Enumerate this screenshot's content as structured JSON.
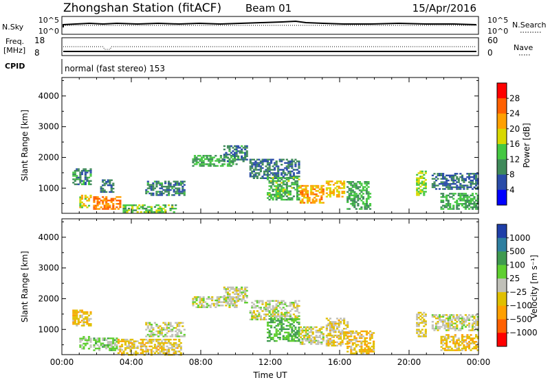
{
  "header": {
    "station": "Zhongshan Station (fitACF)",
    "beam": "Beam 01",
    "date": "15/Apr/2016"
  },
  "summary": {
    "nsky_label": "N.Sky",
    "nsky_ticks": [
      "10^5",
      "10^0"
    ],
    "nsearch_label": "N.Search",
    "nsearch_ticks": [
      "10^5",
      "10^0"
    ],
    "freq_label_1": "Freq.",
    "freq_label_2": "[MHz]",
    "freq_ticks": [
      "18",
      "8"
    ],
    "nave_label": "Nave",
    "nave_ticks": [
      "60",
      "0"
    ],
    "cpid_label": "CPID",
    "mode_text": "normal (fast stereo) 153"
  },
  "colors": {
    "power_scale": [
      "#0000ff",
      "#2a4ca8",
      "#3f8a5a",
      "#45c842",
      "#d8d800",
      "#ffa000",
      "#ff6000",
      "#ff0000"
    ],
    "velocity_scale": [
      "#1f3fa8",
      "#2e7fa0",
      "#3f9a50",
      "#5fcf30",
      "#c0c0b8",
      "#e0c000",
      "#ffa000",
      "#ff6000",
      "#ff0000"
    ]
  },
  "chart_data": [
    {
      "type": "heatmap",
      "panel": "power",
      "ylabel": "Slant Range [km]",
      "yticks": [
        "4000",
        "3000",
        "2000",
        "1000"
      ],
      "ylim": [
        180,
        4600
      ],
      "xlim": [
        0,
        24
      ],
      "colorbar": {
        "label": "Power [dB]",
        "ticks": [
          "28",
          "24",
          "20",
          "16",
          "12",
          "8",
          "4"
        ],
        "range": [
          0,
          32
        ]
      },
      "regions": [
        {
          "t0": 0.6,
          "t1": 1.7,
          "r0": 1150,
          "r1": 1650,
          "v": 10
        },
        {
          "t0": 1.0,
          "t1": 1.7,
          "r0": 400,
          "r1": 800,
          "v": 18
        },
        {
          "t0": 1.8,
          "t1": 3.4,
          "r0": 350,
          "r1": 750,
          "v": 24
        },
        {
          "t0": 2.2,
          "t1": 3.0,
          "r0": 900,
          "r1": 1300,
          "v": 8
        },
        {
          "t0": 3.5,
          "t1": 6.5,
          "r0": 250,
          "r1": 480,
          "v": 14
        },
        {
          "t0": 4.8,
          "t1": 7.0,
          "r0": 800,
          "r1": 1250,
          "v": 9
        },
        {
          "t0": 7.5,
          "t1": 10.0,
          "r0": 1750,
          "r1": 2100,
          "v": 12
        },
        {
          "t0": 9.3,
          "t1": 10.6,
          "r0": 1900,
          "r1": 2400,
          "v": 9
        },
        {
          "t0": 10.8,
          "t1": 13.6,
          "r0": 1350,
          "r1": 2000,
          "v": 8
        },
        {
          "t0": 11.8,
          "t1": 13.6,
          "r0": 650,
          "r1": 1400,
          "v": 13
        },
        {
          "t0": 13.7,
          "t1": 15.0,
          "r0": 550,
          "r1": 1150,
          "v": 22
        },
        {
          "t0": 15.2,
          "t1": 16.3,
          "r0": 750,
          "r1": 1300,
          "v": 20
        },
        {
          "t0": 16.4,
          "t1": 17.8,
          "r0": 350,
          "r1": 1250,
          "v": 12
        },
        {
          "t0": 20.4,
          "t1": 21.0,
          "r0": 800,
          "r1": 1600,
          "v": 16
        },
        {
          "t0": 21.3,
          "t1": 24.0,
          "r0": 1000,
          "r1": 1500,
          "v": 8
        },
        {
          "t0": 21.8,
          "t1": 24.0,
          "r0": 350,
          "r1": 900,
          "v": 12
        }
      ]
    },
    {
      "type": "heatmap",
      "panel": "velocity",
      "ylabel": "Slant Range [km]",
      "yticks": [
        "4000",
        "3000",
        "2000",
        "1000"
      ],
      "ylim": [
        180,
        4600
      ],
      "xlim": [
        0,
        24
      ],
      "xlabel": "Time UT",
      "xticks": [
        "00:00",
        "04:00",
        "08:00",
        "12:00",
        "16:00",
        "20:00",
        "00:00"
      ],
      "colorbar": {
        "label": "Velocity [m s⁻¹]",
        "ticks": [
          "1000",
          "500",
          "100",
          "25",
          "−25",
          "−100",
          "−500",
          "−1000"
        ],
        "range": [
          -1200,
          1200
        ]
      },
      "regions": [
        {
          "t0": 0.6,
          "t1": 1.7,
          "r0": 1150,
          "r1": 1650,
          "v": -300
        },
        {
          "t0": 1.0,
          "t1": 1.7,
          "r0": 400,
          "r1": 800,
          "v": 150
        },
        {
          "t0": 1.8,
          "t1": 3.2,
          "r0": 350,
          "r1": 750,
          "v": 200
        },
        {
          "t0": 3.2,
          "t1": 6.8,
          "r0": 200,
          "r1": 700,
          "v": -250
        },
        {
          "t0": 4.8,
          "t1": 7.0,
          "r0": 800,
          "r1": 1250,
          "v": 0
        },
        {
          "t0": 7.5,
          "t1": 10.0,
          "r0": 1750,
          "r1": 2100,
          "v": 0
        },
        {
          "t0": 9.3,
          "t1": 10.6,
          "r0": 1900,
          "r1": 2400,
          "v": 0
        },
        {
          "t0": 10.8,
          "t1": 13.6,
          "r0": 1350,
          "r1": 2000,
          "v": 0
        },
        {
          "t0": 11.8,
          "t1": 13.6,
          "r0": 650,
          "r1": 1400,
          "v": 400
        },
        {
          "t0": 13.7,
          "t1": 15.0,
          "r0": 550,
          "r1": 1150,
          "v": -50
        },
        {
          "t0": 15.2,
          "t1": 16.5,
          "r0": 500,
          "r1": 1400,
          "v": -200
        },
        {
          "t0": 16.4,
          "t1": 18.0,
          "r0": 250,
          "r1": 1000,
          "v": -300
        },
        {
          "t0": 20.4,
          "t1": 21.0,
          "r0": 800,
          "r1": 1600,
          "v": -150
        },
        {
          "t0": 21.3,
          "t1": 24.0,
          "r0": 1000,
          "r1": 1500,
          "v": 0
        },
        {
          "t0": 21.8,
          "t1": 24.0,
          "r0": 350,
          "r1": 900,
          "v": -300
        }
      ]
    }
  ]
}
